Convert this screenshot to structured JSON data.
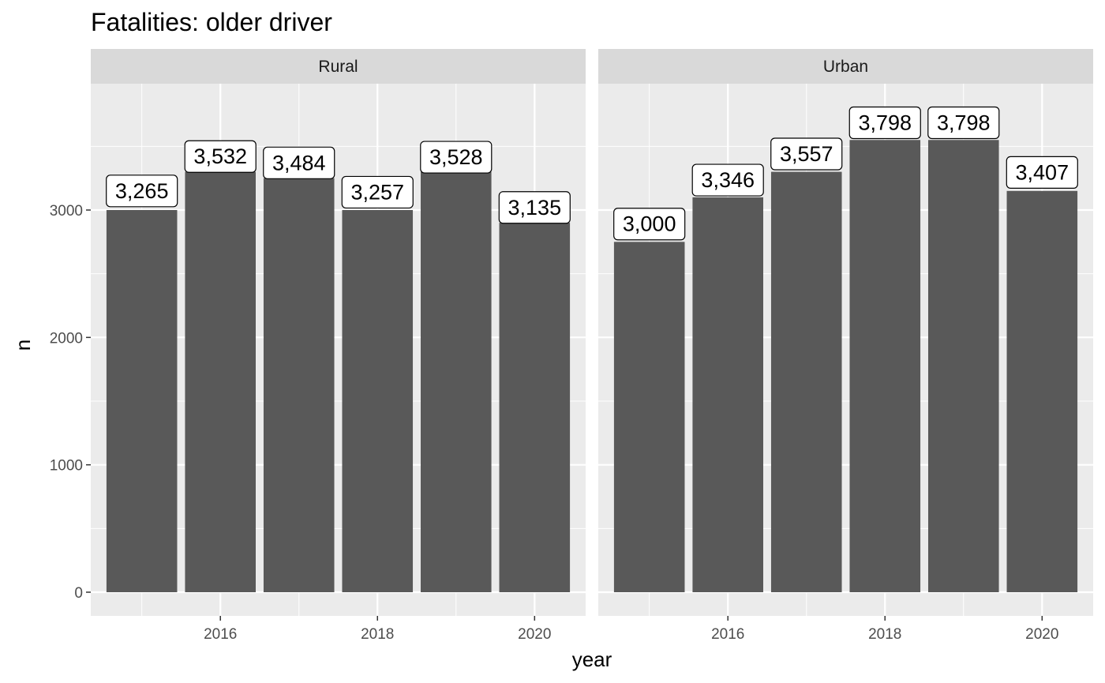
{
  "chart_data": {
    "type": "bar",
    "title": "Fatalities: older driver",
    "xlabel": "year",
    "ylabel": "n",
    "ylim": [
      0,
      4000
    ],
    "xlim": [
      2014.35,
      2020.65
    ],
    "y_ticks": [
      0,
      1000,
      2000,
      3000
    ],
    "y_tick_labels": [
      "0",
      "1000",
      "2000",
      "3000"
    ],
    "x_ticks": [
      2016,
      2018,
      2020
    ],
    "x_tick_labels": [
      "2016",
      "2018",
      "2020"
    ],
    "grid": true,
    "colors": {
      "panel_bg": "#EBEBEB",
      "strip_bg": "#D9D9D9",
      "bar": "#595959",
      "grid": "#FFFFFF"
    },
    "categories": [
      2015,
      2016,
      2017,
      2018,
      2019,
      2020
    ],
    "panels": [
      {
        "name": "Rural",
        "values": [
          3000,
          3300,
          3250,
          3000,
          3300,
          2900
        ],
        "labels": [
          "3,265",
          "3,532",
          "3,484",
          "3,257",
          "3,528",
          "3,135"
        ],
        "label_values": [
          3150,
          3420,
          3370,
          3140,
          3415,
          3020
        ]
      },
      {
        "name": "Urban",
        "values": [
          2750,
          3100,
          3300,
          3550,
          3550,
          3150
        ],
        "labels": [
          "3,000",
          "3,346",
          "3,557",
          "3,798",
          "3,798",
          "3,407"
        ],
        "label_values": [
          2890,
          3235,
          3440,
          3685,
          3685,
          3295
        ]
      }
    ]
  }
}
